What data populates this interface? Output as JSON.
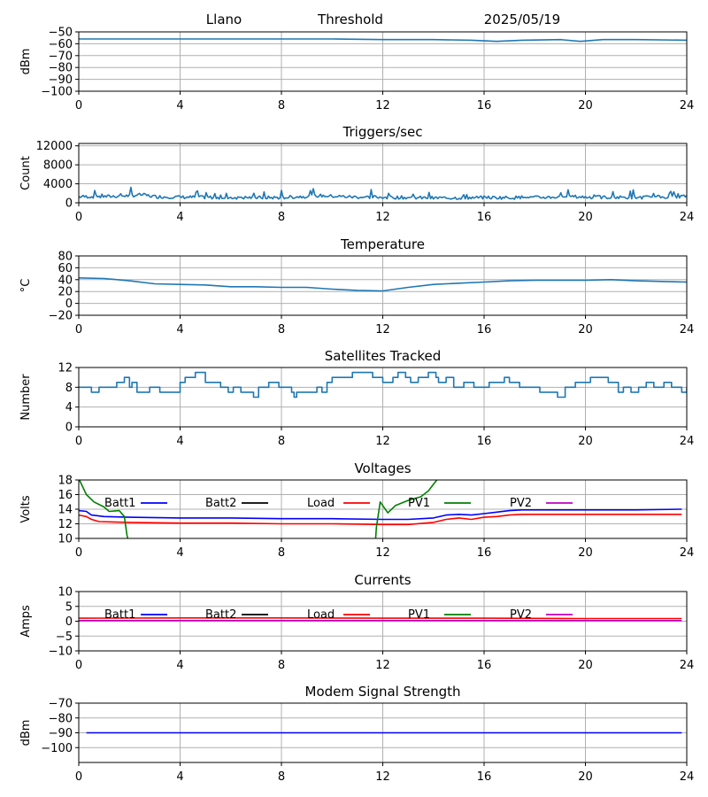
{
  "header": {
    "station": "Llano",
    "mode": "Threshold",
    "date": "2025/05/19"
  },
  "legend_labels": [
    "Batt1",
    "Batt2",
    "Load",
    "PV1",
    "PV2"
  ],
  "colors": {
    "series_default": "#1f77b4",
    "Batt1": "#0000ff",
    "Batt2": "#000000",
    "Load": "#ff0000",
    "PV1": "#008000",
    "PV2": "#bf00bf",
    "grid": "#b0b0b0"
  },
  "chart_data": [
    {
      "type": "line",
      "title": "",
      "ylabel": "dBm",
      "x_ticks": [
        0,
        4,
        8,
        12,
        16,
        20,
        24
      ],
      "xlim": [
        0,
        24
      ],
      "ylim": [
        -100,
        -50
      ],
      "y_ticks": [
        -100,
        -90,
        -80,
        -70,
        -60,
        -50
      ],
      "grid": true,
      "series": [
        {
          "color_key": "series_default",
          "x": [
            0,
            2,
            4,
            6,
            8,
            10,
            12,
            14,
            15.5,
            16.5,
            17.5,
            19,
            19.8,
            20.7,
            22,
            24
          ],
          "y": [
            -56,
            -56,
            -56,
            -56,
            -56,
            -56,
            -56.5,
            -56.5,
            -57,
            -58,
            -57,
            -56.5,
            -58,
            -56.5,
            -56.5,
            -57
          ]
        }
      ]
    },
    {
      "type": "line",
      "title": "Triggers/sec",
      "ylabel": "Count",
      "x_ticks": [
        0,
        4,
        8,
        12,
        16,
        20,
        24
      ],
      "xlim": [
        0,
        24
      ],
      "ylim": [
        0,
        12500
      ],
      "y_ticks": [
        0,
        4000,
        8000,
        12000
      ],
      "grid": true,
      "noise": true,
      "series": [
        {
          "color_key": "series_default",
          "x": [
            0,
            1,
            2,
            2.5,
            3,
            4,
            6,
            8,
            9.5,
            11,
            12,
            14,
            16,
            18,
            19.5,
            20,
            22,
            24
          ],
          "y": [
            1300,
            1300,
            1500,
            1700,
            1300,
            1200,
            1100,
            1100,
            1500,
            1200,
            1200,
            1000,
            1100,
            1100,
            1300,
            1200,
            1100,
            1400
          ]
        }
      ]
    },
    {
      "type": "line",
      "title": "Temperature",
      "ylabel": "°C",
      "x_ticks": [
        0,
        4,
        8,
        12,
        16,
        20,
        24
      ],
      "xlim": [
        0,
        24
      ],
      "ylim": [
        -20,
        80
      ],
      "y_ticks": [
        -20,
        0,
        20,
        40,
        60,
        80
      ],
      "grid": true,
      "series": [
        {
          "color_key": "series_default",
          "x": [
            0,
            1,
            2,
            3,
            4,
            5,
            6,
            7,
            8,
            9,
            10,
            11,
            12,
            13,
            14,
            15,
            16,
            17,
            18,
            19,
            20,
            21,
            22,
            23,
            24
          ],
          "y": [
            43,
            42,
            38,
            33,
            32,
            31,
            28,
            28,
            27,
            27,
            24,
            22,
            21,
            27,
            32,
            34,
            36,
            38,
            39,
            39,
            39,
            40,
            38,
            37,
            36
          ]
        }
      ]
    },
    {
      "type": "line",
      "title": "Satellites Tracked",
      "ylabel": "Number",
      "x_ticks": [
        0,
        4,
        8,
        12,
        16,
        20,
        24
      ],
      "xlim": [
        0,
        24
      ],
      "ylim": [
        0,
        12
      ],
      "y_ticks": [
        0,
        4,
        8,
        12
      ],
      "grid": true,
      "step": true,
      "series": [
        {
          "color_key": "series_default",
          "x": [
            0,
            0.3,
            0.5,
            0.8,
            1.5,
            1.8,
            2.0,
            2.1,
            2.3,
            2.8,
            3.0,
            3.2,
            4.0,
            4.2,
            4.6,
            5.0,
            5.6,
            5.9,
            6.1,
            6.4,
            6.9,
            7.1,
            7.5,
            7.9,
            8.4,
            8.5,
            8.6,
            9.0,
            9.4,
            9.6,
            9.8,
            10.0,
            10.4,
            10.8,
            11.6,
            12.0,
            12.4,
            12.6,
            12.9,
            13.1,
            13.4,
            13.8,
            14.1,
            14.2,
            14.5,
            14.8,
            15.2,
            15.6,
            16.2,
            16.6,
            16.8,
            17.0,
            17.4,
            17.8,
            18.2,
            18.9,
            19.2,
            19.6,
            20.2,
            20.9,
            21.3,
            21.5,
            21.8,
            22.1,
            22.4,
            22.7,
            23.1,
            23.4,
            23.8,
            24.0
          ],
          "y": [
            8,
            8,
            7,
            8,
            9,
            10,
            8,
            9,
            7,
            8,
            8,
            7,
            9,
            10,
            11,
            9,
            8,
            7,
            8,
            7,
            6,
            8,
            9,
            8,
            7,
            6,
            7,
            7,
            8,
            7,
            9,
            10,
            10,
            11,
            10,
            9,
            10,
            11,
            10,
            9,
            10,
            11,
            10,
            9,
            10,
            8,
            9,
            8,
            9,
            9,
            10,
            9,
            8,
            8,
            7,
            6,
            8,
            9,
            10,
            9,
            7,
            8,
            7,
            8,
            9,
            8,
            9,
            8,
            7,
            8
          ]
        }
      ]
    },
    {
      "type": "line",
      "title": "Voltages",
      "ylabel": "Volts",
      "x_ticks": [
        0,
        4,
        8,
        12,
        16,
        20,
        24
      ],
      "xlim": [
        0,
        24
      ],
      "ylim": [
        10,
        18
      ],
      "y_ticks": [
        10,
        12,
        14,
        16,
        18
      ],
      "grid": true,
      "legend": true,
      "series": [
        {
          "name": "Batt1",
          "color_key": "Batt1",
          "x": [
            0,
            0.3,
            0.5,
            1.0,
            2,
            4,
            6,
            8,
            10,
            12,
            13,
            14,
            14.5,
            15,
            15.5,
            16,
            16.5,
            17,
            17.5,
            18,
            20,
            22,
            23.8
          ],
          "y": [
            13.8,
            13.7,
            13.2,
            13.0,
            12.9,
            12.8,
            12.8,
            12.7,
            12.7,
            12.6,
            12.6,
            12.8,
            13.2,
            13.3,
            13.2,
            13.4,
            13.6,
            13.8,
            13.9,
            13.9,
            13.9,
            13.9,
            14.0
          ]
        },
        {
          "name": "Load",
          "color_key": "Load",
          "x": [
            0,
            0.3,
            0.5,
            0.8,
            2,
            4,
            6,
            8,
            10,
            12,
            13,
            14,
            14.5,
            15,
            15.5,
            16,
            16.5,
            17,
            17.5,
            18,
            20,
            22,
            23.8
          ],
          "y": [
            13.2,
            13.0,
            12.6,
            12.3,
            12.2,
            12.1,
            12.1,
            12.0,
            12.0,
            11.9,
            11.9,
            12.2,
            12.6,
            12.8,
            12.6,
            12.9,
            13.0,
            13.2,
            13.3,
            13.3,
            13.3,
            13.3,
            13.3
          ]
        },
        {
          "name": "PV1",
          "color_key": "PV1",
          "x": [
            0,
            0.3,
            0.6,
            1.0,
            1.2,
            1.6,
            1.8,
            1.9,
            2.0,
            11.7,
            11.75,
            11.9,
            12.0,
            12.2,
            12.5,
            13.0,
            13.5,
            13.8,
            14.2
          ],
          "y": [
            18.2,
            16.0,
            15.0,
            14.3,
            13.7,
            13.8,
            13.0,
            10.5,
            9.0,
            9.0,
            11.5,
            15.0,
            14.5,
            13.5,
            14.5,
            15.2,
            15.7,
            16.5,
            18.3
          ]
        },
        {
          "name": "Batt2",
          "color_key": "Batt2",
          "x": [],
          "y": []
        },
        {
          "name": "PV2",
          "color_key": "PV2",
          "x": [],
          "y": []
        }
      ]
    },
    {
      "type": "line",
      "title": "Currents",
      "ylabel": "Amps",
      "x_ticks": [
        0,
        4,
        8,
        12,
        16,
        20,
        24
      ],
      "xlim": [
        0,
        24
      ],
      "ylim": [
        -10,
        10
      ],
      "y_ticks": [
        -10,
        -5,
        0,
        5,
        10
      ],
      "grid": true,
      "legend": true,
      "series": [
        {
          "name": "Load",
          "color_key": "Load",
          "x": [
            0,
            4,
            8,
            12,
            16,
            20,
            23.8
          ],
          "y": [
            1.0,
            1.1,
            1.1,
            1.0,
            1.0,
            0.9,
            0.9
          ]
        },
        {
          "name": "PV2",
          "color_key": "PV2",
          "x": [
            0,
            23.8
          ],
          "y": [
            0.2,
            0.2
          ]
        },
        {
          "name": "Batt1",
          "color_key": "Batt1",
          "x": [],
          "y": []
        },
        {
          "name": "Batt2",
          "color_key": "Batt2",
          "x": [],
          "y": []
        },
        {
          "name": "PV1",
          "color_key": "PV1",
          "x": [],
          "y": []
        }
      ]
    },
    {
      "type": "line",
      "title": "Modem Signal Strength",
      "ylabel": "dBm",
      "x_ticks": [
        0,
        4,
        8,
        12,
        16,
        20,
        24
      ],
      "xlim": [
        0,
        24
      ],
      "ylim": [
        -110,
        -70
      ],
      "y_ticks": [
        -100,
        -90,
        -80,
        -70
      ],
      "grid": true,
      "series": [
        {
          "color_key": "Batt1",
          "x": [
            0.3,
            23.8
          ],
          "y": [
            -90,
            -90
          ]
        }
      ]
    }
  ]
}
